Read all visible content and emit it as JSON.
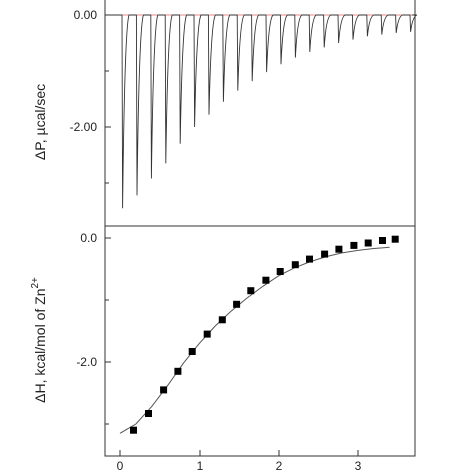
{
  "figure": {
    "top_ylabel": "ΔP, µcal/sec",
    "bottom_ylabel_main": "ΔH, kcal/mol of Zn",
    "bottom_ylabel_sup": "2+"
  },
  "chart_data": [
    {
      "type": "line",
      "ylabel": "ΔP, µcal/sec",
      "yticks": [
        "0.00",
        "-2.00"
      ],
      "ylim": [
        -3.65,
        0.25
      ],
      "baseline": 0.0,
      "colors": {
        "trace": "#333333",
        "baseline": "#e06060"
      },
      "injection_peaks": [
        -3.45,
        -3.22,
        -2.92,
        -2.65,
        -2.3,
        -2.0,
        -1.78,
        -1.55,
        -1.35,
        -1.18,
        -1.02,
        -0.88,
        -0.76,
        -0.66,
        -0.58,
        -0.5,
        -0.44,
        -0.38,
        -0.35,
        -0.32,
        -0.3
      ]
    },
    {
      "type": "scatter",
      "ylabel": "ΔH, kcal/mol of Zn2+",
      "xticks": [
        "0",
        "1",
        "2",
        "3"
      ],
      "yticks": [
        "0.0",
        "-2.0"
      ],
      "xlim": [
        -0.1,
        3.7
      ],
      "ylim": [
        -3.4,
        0.1
      ],
      "colors": {
        "points": "#000000",
        "fit": "#555555"
      },
      "points": {
        "x": [
          0.17,
          0.36,
          0.55,
          0.73,
          0.91,
          1.1,
          1.29,
          1.47,
          1.65,
          1.84,
          2.02,
          2.21,
          2.39,
          2.58,
          2.76,
          2.95,
          3.13,
          3.31,
          3.47
        ],
        "y": [
          -3.1,
          -2.83,
          -2.45,
          -2.15,
          -1.83,
          -1.55,
          -1.32,
          -1.07,
          -0.85,
          -0.68,
          -0.54,
          -0.43,
          -0.34,
          -0.26,
          -0.18,
          -0.12,
          -0.08,
          -0.04,
          -0.02
        ]
      },
      "fit": {
        "x": [
          0.0,
          0.2,
          0.4,
          0.6,
          0.8,
          1.0,
          1.2,
          1.4,
          1.6,
          1.8,
          2.0,
          2.2,
          2.4,
          2.6,
          2.8,
          3.0,
          3.2,
          3.4
        ],
        "y": [
          -3.15,
          -3.0,
          -2.72,
          -2.38,
          -2.02,
          -1.7,
          -1.42,
          -1.18,
          -0.97,
          -0.78,
          -0.61,
          -0.48,
          -0.38,
          -0.3,
          -0.24,
          -0.2,
          -0.17,
          -0.15
        ]
      }
    }
  ]
}
